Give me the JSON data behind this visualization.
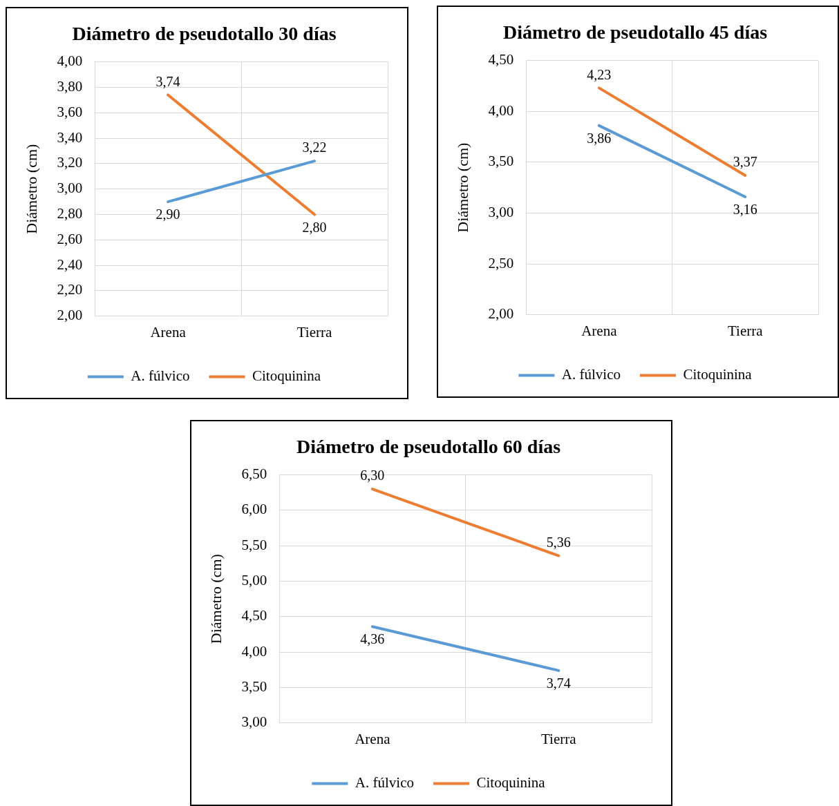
{
  "chart_data": [
    {
      "type": "line",
      "title": "Diámetro de pseudotallo 30 días",
      "ylabel": "Diámetro (cm)",
      "categories": [
        "Arena",
        "Tierra"
      ],
      "ylim": [
        2,
        4
      ],
      "yticks": [
        {
          "value": 2,
          "label": "2,00"
        },
        {
          "value": 2.2,
          "label": "2,20"
        },
        {
          "value": 2.4,
          "label": "2,40"
        },
        {
          "value": 2.6,
          "label": "2,60"
        },
        {
          "value": 2.8,
          "label": "2,80"
        },
        {
          "value": 3,
          "label": "3,00"
        },
        {
          "value": 3.2,
          "label": "3,20"
        },
        {
          "value": 3.4,
          "label": "3,40"
        },
        {
          "value": 3.6,
          "label": "3,60"
        },
        {
          "value": 3.8,
          "label": "3,80"
        },
        {
          "value": 4,
          "label": "4,00"
        }
      ],
      "grid": true,
      "legend": "bottom",
      "series": [
        {
          "name": "A. fúlvico",
          "color": "#5b9bd5",
          "values": [
            2.9,
            3.22
          ],
          "value_labels": [
            "2,90",
            "3,22"
          ]
        },
        {
          "name": "Citoquinina",
          "color": "#ed7d31",
          "values": [
            3.74,
            2.8
          ],
          "value_labels": [
            "3,74",
            "2,80"
          ]
        }
      ]
    },
    {
      "type": "line",
      "title": "Diámetro de pseudotallo 45 días",
      "ylabel": "Diámetro (cm)",
      "categories": [
        "Arena",
        "Tierra"
      ],
      "ylim": [
        2,
        4.5
      ],
      "yticks": [
        {
          "value": 2,
          "label": "2,00"
        },
        {
          "value": 2.5,
          "label": "2,50"
        },
        {
          "value": 3,
          "label": "3,00"
        },
        {
          "value": 3.5,
          "label": "3,50"
        },
        {
          "value": 4,
          "label": "4,00"
        },
        {
          "value": 4.5,
          "label": "4,50"
        }
      ],
      "grid": true,
      "legend": "bottom",
      "series": [
        {
          "name": "A. fúlvico",
          "color": "#5b9bd5",
          "values": [
            3.86,
            3.16
          ],
          "value_labels": [
            "3,86",
            "3,16"
          ]
        },
        {
          "name": "Citoquinina",
          "color": "#ed7d31",
          "values": [
            4.23,
            3.37
          ],
          "value_labels": [
            "4,23",
            "3,37"
          ]
        }
      ]
    },
    {
      "type": "line",
      "title": "Diámetro de pseudotallo 60 días",
      "ylabel": "Diámetro (cm)",
      "categories": [
        "Arena",
        "Tierra"
      ],
      "ylim": [
        3,
        6.5
      ],
      "yticks": [
        {
          "value": 3,
          "label": "3,00"
        },
        {
          "value": 3.5,
          "label": "3,50"
        },
        {
          "value": 4,
          "label": "4,00"
        },
        {
          "value": 4.5,
          "label": "4,50"
        },
        {
          "value": 5,
          "label": "5,00"
        },
        {
          "value": 5.5,
          "label": "5,50"
        },
        {
          "value": 6,
          "label": "6,00"
        },
        {
          "value": 6.5,
          "label": "6,50"
        }
      ],
      "grid": true,
      "legend": "bottom",
      "series": [
        {
          "name": "A. fúlvico",
          "color": "#5b9bd5",
          "values": [
            4.36,
            3.74
          ],
          "value_labels": [
            "4,36",
            "3,74"
          ]
        },
        {
          "name": "Citoquinina",
          "color": "#ed7d31",
          "values": [
            6.3,
            5.36
          ],
          "value_labels": [
            "6,30",
            "5,36"
          ]
        }
      ]
    }
  ]
}
